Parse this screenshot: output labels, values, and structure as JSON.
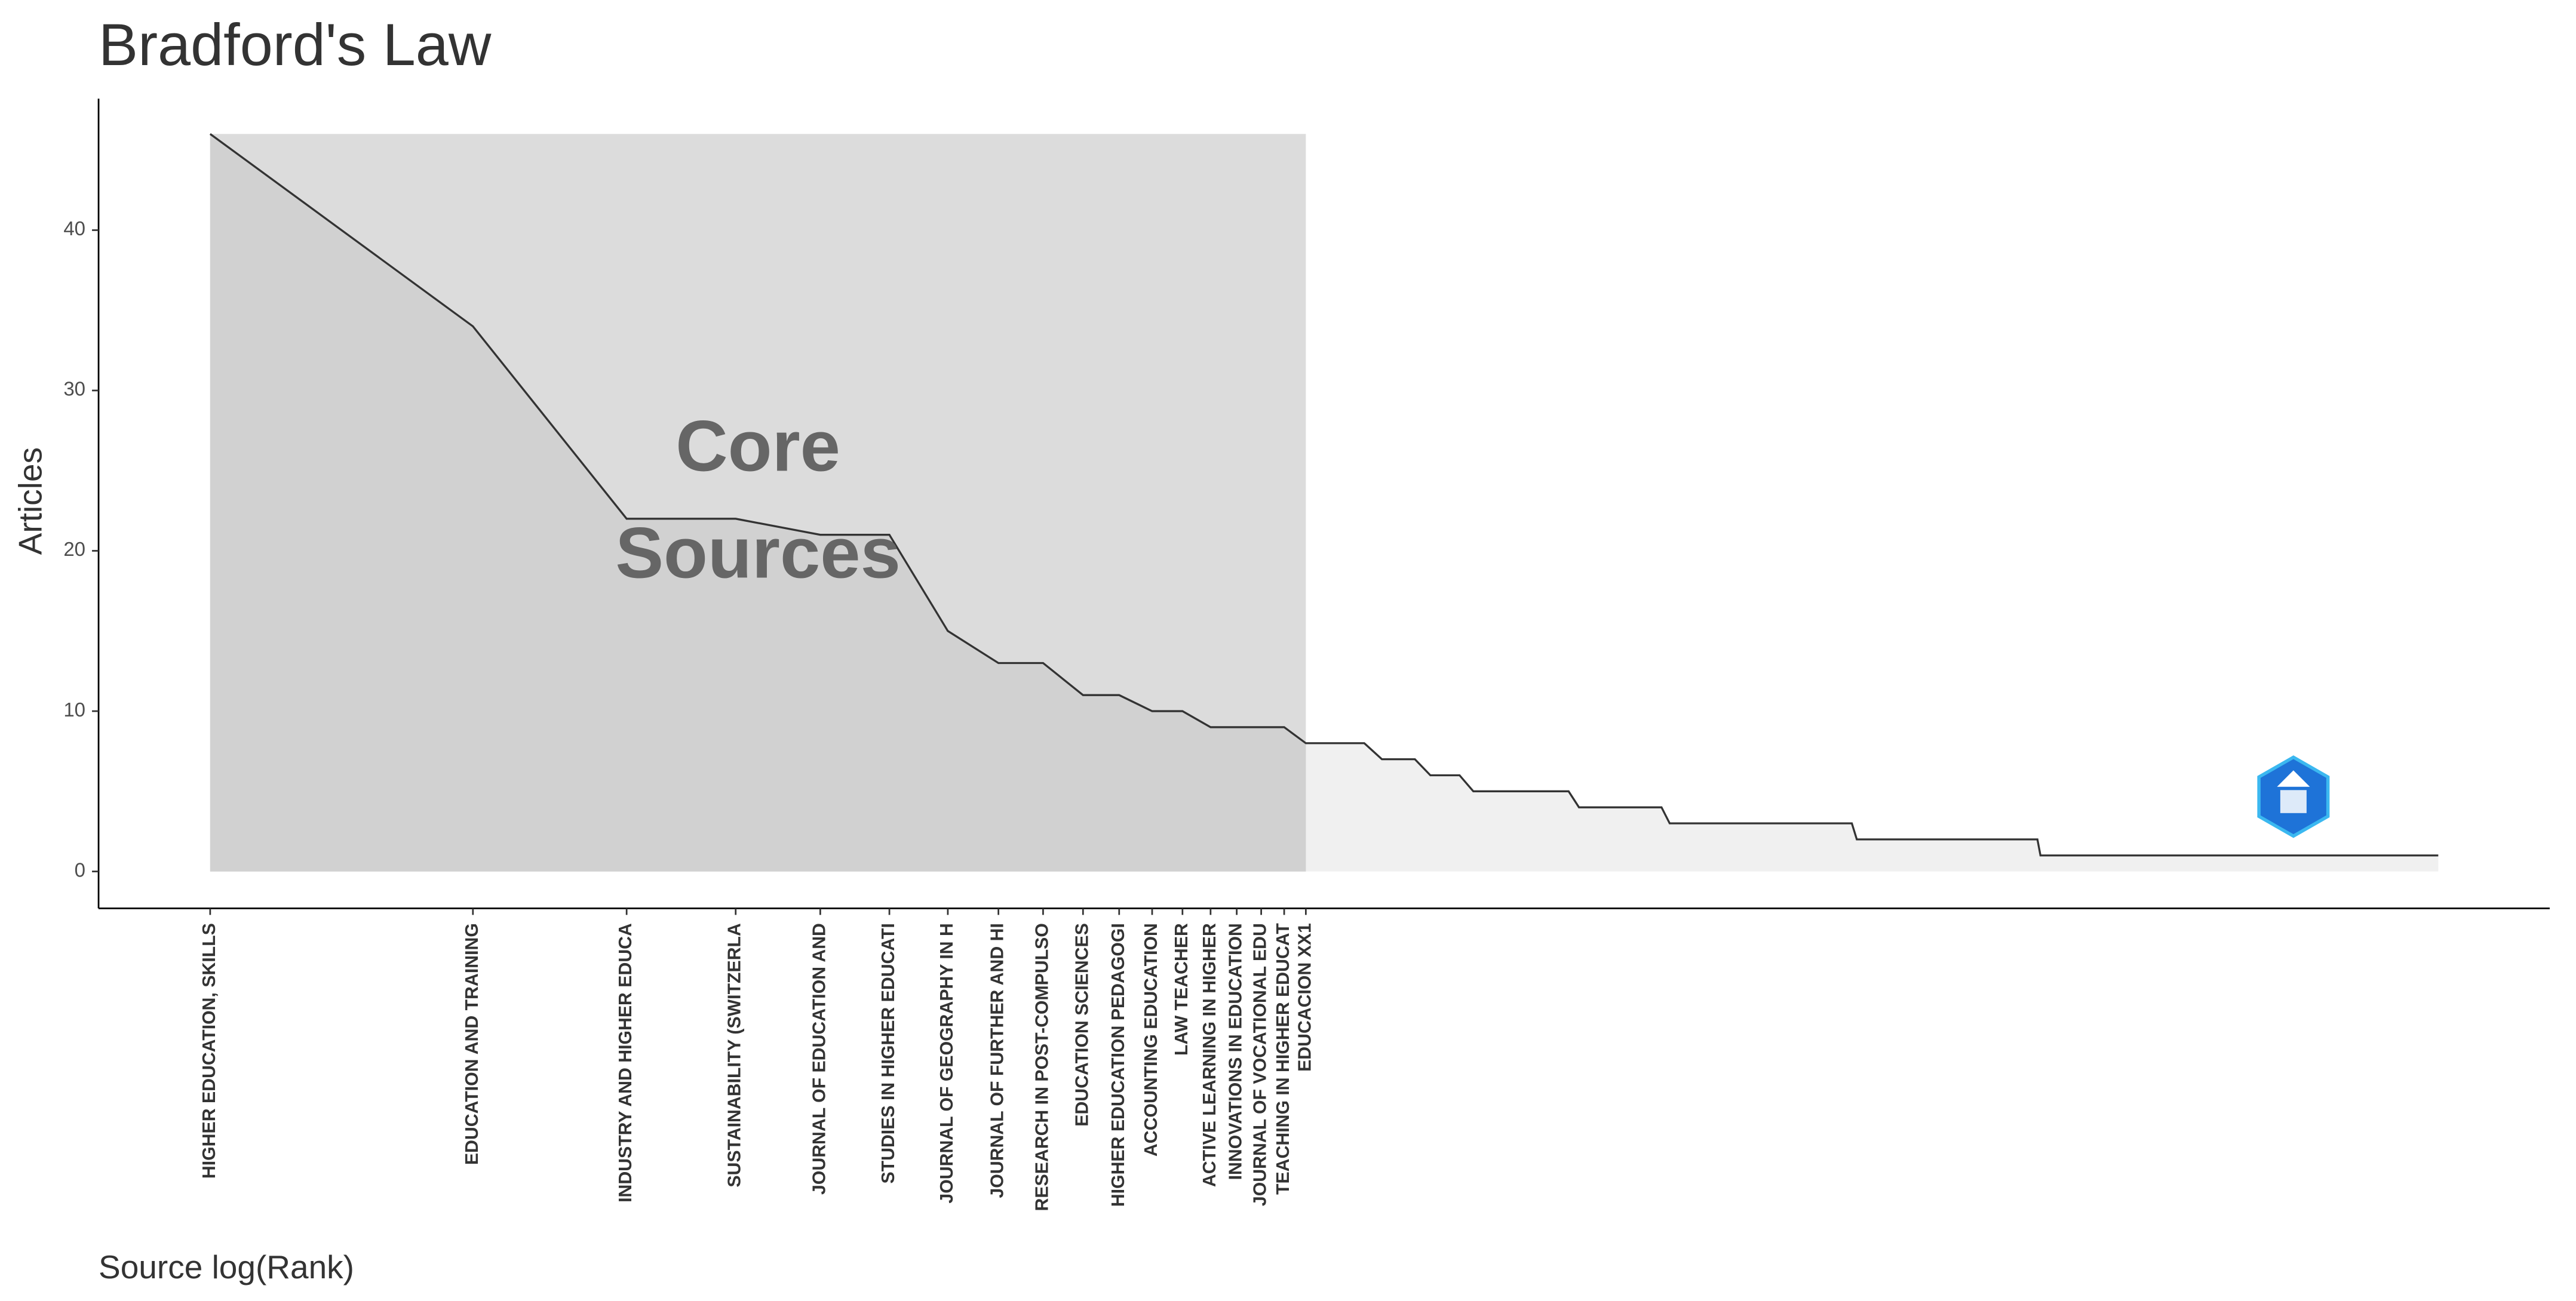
{
  "chart_data": {
    "type": "bradford",
    "title": "Bradford's Law",
    "x_label": "Source log(Rank)",
    "y_label": "Articles",
    "annotation": [
      "Core",
      "Sources"
    ],
    "x": [
      1,
      2,
      3,
      4,
      5,
      6,
      7,
      8,
      9,
      10,
      11,
      12,
      13,
      14,
      15,
      16,
      17,
      18,
      21,
      22,
      24,
      25,
      27,
      28,
      36,
      37,
      46,
      47,
      76,
      77,
      124,
      125,
      357
    ],
    "values": [
      46,
      34,
      22,
      22,
      21,
      21,
      15,
      13,
      13,
      11,
      11,
      10,
      10,
      9,
      9,
      9,
      9,
      8,
      8,
      7,
      7,
      6,
      6,
      5,
      5,
      4,
      4,
      3,
      3,
      2,
      2,
      1,
      1
    ],
    "color": "#333333",
    "core_color": "#dcdcdc",
    "core_area_color": "#d1d1d1",
    "area_color": "#f0f0f0",
    "xscale": "log",
    "xlim": [
      0.745,
      479
    ],
    "ylim": [
      -2.3,
      48.2
    ],
    "yticks": [
      0,
      10,
      20,
      30,
      40
    ],
    "xticks": [
      {
        "value": 1,
        "label": "HIGHER EDUCATION, SKILLS"
      },
      {
        "value": 2,
        "label": "EDUCATION AND TRAINING"
      },
      {
        "value": 3,
        "label": "INDUSTRY AND HIGHER EDUCA"
      },
      {
        "value": 4,
        "label": "SUSTAINABILITY (SWITZERLA"
      },
      {
        "value": 5,
        "label": "JOURNAL OF EDUCATION AND"
      },
      {
        "value": 6,
        "label": "STUDIES IN HIGHER EDUCATI"
      },
      {
        "value": 7,
        "label": "JOURNAL OF GEOGRAPHY IN H"
      },
      {
        "value": 8,
        "label": "JOURNAL OF FURTHER AND HI"
      },
      {
        "value": 9,
        "label": "RESEARCH IN POST-COMPULSO"
      },
      {
        "value": 10,
        "label": "EDUCATION SCIENCES"
      },
      {
        "value": 11,
        "label": "HIGHER EDUCATION PEDAGOGI"
      },
      {
        "value": 12,
        "label": "ACCOUNTING EDUCATION"
      },
      {
        "value": 13,
        "label": "LAW TEACHER"
      },
      {
        "value": 14,
        "label": "ACTIVE LEARNING IN HIGHER"
      },
      {
        "value": 15,
        "label": "INNOVATIONS IN EDUCATION"
      },
      {
        "value": 16,
        "label": "JOURNAL OF VOCATIONAL EDU"
      },
      {
        "value": 17,
        "label": "TEACHING IN HIGHER EDUCAT"
      },
      {
        "value": 18,
        "label": "EDUCACION XX1"
      }
    ]
  }
}
